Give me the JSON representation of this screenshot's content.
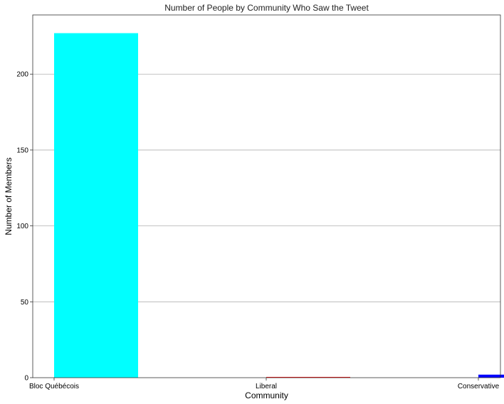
{
  "chart_data": {
    "type": "bar",
    "title": "Number of People by Community Who Saw the Tweet",
    "xlabel": "Community",
    "ylabel": "Number of Members",
    "categories": [
      "Bloc Québécois",
      "Liberal",
      "Conservative"
    ],
    "values": [
      227,
      0.5,
      2
    ],
    "colors": [
      "#00ffff",
      "#ff0000",
      "#0000ff"
    ],
    "ylim": [
      0,
      239
    ],
    "yticks": [
      0,
      50,
      100,
      150,
      200
    ],
    "grid": "y"
  }
}
